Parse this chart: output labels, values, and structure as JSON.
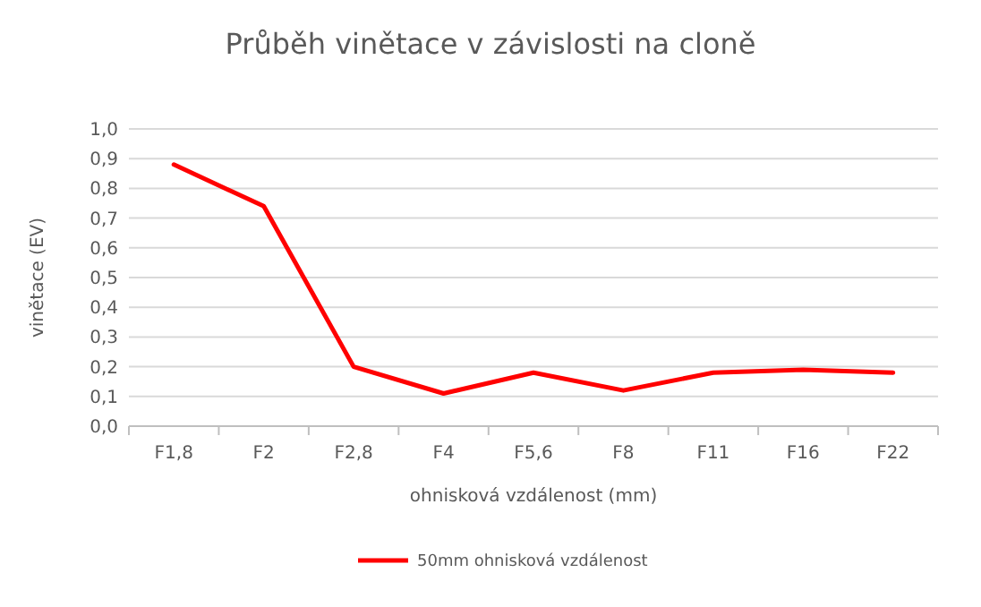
{
  "chart_data": {
    "type": "line",
    "title": "Průběh vinětace v závislosti na cloně",
    "xlabel": "ohnisková vzdálenost (mm)",
    "ylabel": "vinětace (EV)",
    "categories": [
      "F1,8",
      "F2",
      "F2,8",
      "F4",
      "F5,6",
      "F8",
      "F11",
      "F16",
      "F22"
    ],
    "series": [
      {
        "name": "50mm ohnisková vzdálenost",
        "color": "#ff0000",
        "values": [
          0.88,
          0.74,
          0.2,
          0.11,
          0.18,
          0.12,
          0.18,
          0.19,
          0.18
        ]
      }
    ],
    "ylim": [
      0,
      1
    ],
    "yticks": [
      {
        "value": 0,
        "label": "0,0"
      },
      {
        "value": 0.1,
        "label": "0,1"
      },
      {
        "value": 0.2,
        "label": "0,2"
      },
      {
        "value": 0.3,
        "label": "0,3"
      },
      {
        "value": 0.4,
        "label": "0,4"
      },
      {
        "value": 0.5,
        "label": "0,5"
      },
      {
        "value": 0.6,
        "label": "0,6"
      },
      {
        "value": 0.7,
        "label": "0,7"
      },
      {
        "value": 0.8,
        "label": "0,8"
      },
      {
        "value": 0.9,
        "label": "0,9"
      },
      {
        "value": 1,
        "label": "1,0"
      }
    ],
    "grid": "y",
    "legend": "bottom",
    "marker": "none",
    "line_style": "solid"
  }
}
